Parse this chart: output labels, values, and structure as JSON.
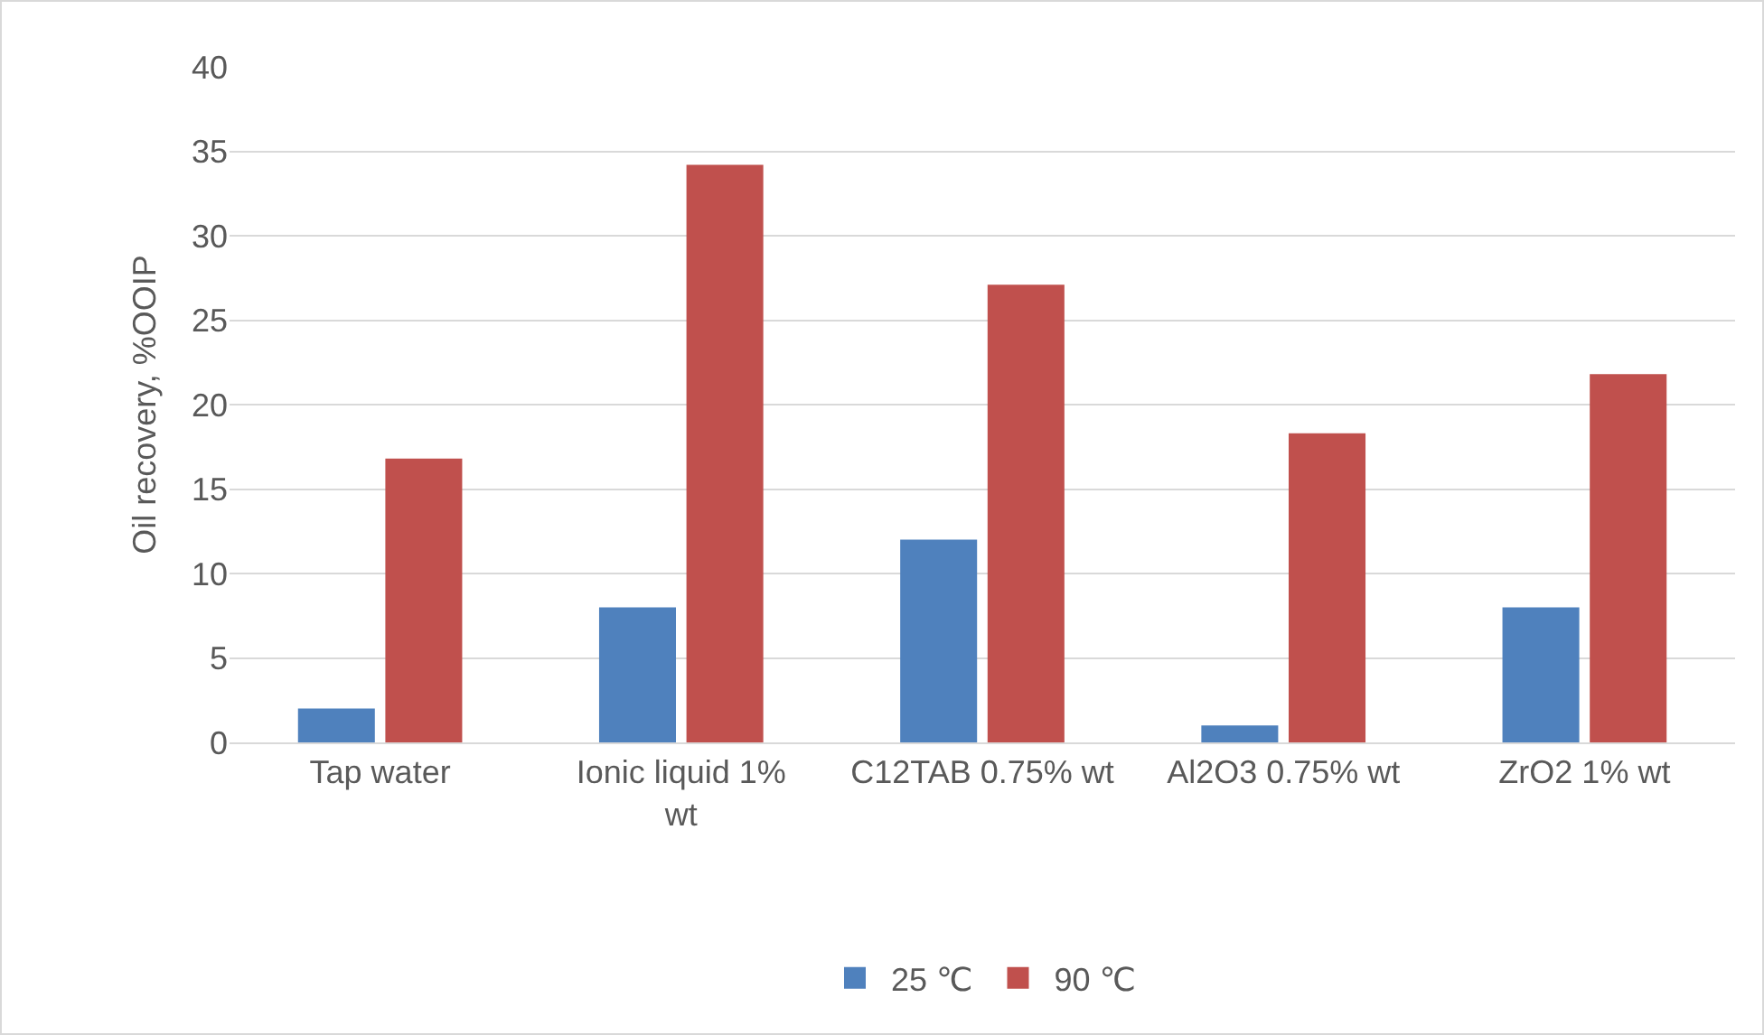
{
  "chart_data": {
    "type": "bar",
    "ylabel": "Oil recovery, %OOIP",
    "categories": [
      "Tap water",
      "Ionic liquid 1% wt",
      "C12TAB 0.75% wt",
      "Al2O3 0.75% wt",
      "ZrO2 1% wt"
    ],
    "series": [
      {
        "name": "25 ℃",
        "color": "#4f81bd",
        "values": [
          2,
          8,
          12,
          1,
          8
        ]
      },
      {
        "name": "90 ℃",
        "color": "#c0504d",
        "values": [
          16.8,
          34.2,
          27.1,
          18.3,
          21.8
        ]
      }
    ],
    "ylim": [
      0,
      40
    ],
    "yticks": [
      0,
      5,
      10,
      15,
      20,
      25,
      30,
      35,
      40
    ],
    "grid": "y",
    "legend": "bottom"
  }
}
